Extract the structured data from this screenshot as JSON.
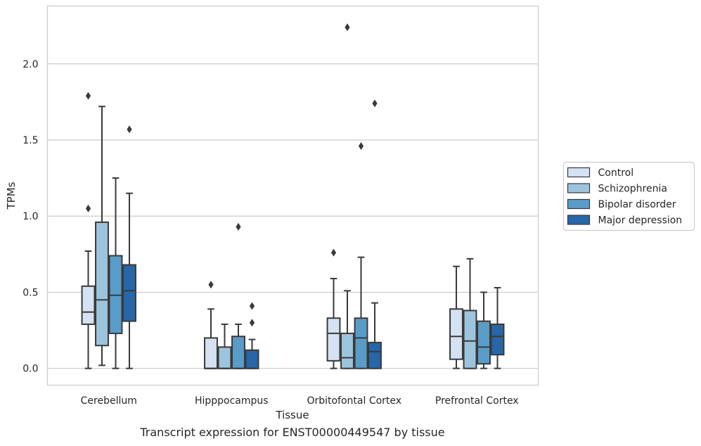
{
  "chart_data": {
    "type": "boxplot",
    "title": "",
    "xlabel": "Tissue",
    "ylabel": "TPMs",
    "caption": "Transcript expression for ENST00000449547 by tissue",
    "categories": [
      "Cerebellum",
      "Hipppocampus",
      "Orbitofontal Cortex",
      "Prefrontal Cortex"
    ],
    "ylim": [
      -0.11,
      2.38
    ],
    "yticks": [
      0.0,
      0.5,
      1.0,
      1.5,
      2.0
    ],
    "ytick_labels": [
      "0.0",
      "0.5",
      "1.0",
      "1.5",
      "2.0"
    ],
    "grid": "horizontal",
    "legend_position": "right",
    "series": [
      {
        "name": "Control",
        "color": "#d4e2f2",
        "boxes": [
          {
            "whislo": 0.0,
            "q1": 0.29,
            "med": 0.37,
            "q3": 0.54,
            "whishi": 0.77,
            "fliers": [
              1.05,
              1.79
            ]
          },
          {
            "whislo": 0.0,
            "q1": 0.0,
            "med": 0.0,
            "q3": 0.2,
            "whishi": 0.39,
            "fliers": [
              0.55
            ]
          },
          {
            "whislo": 0.0,
            "q1": 0.05,
            "med": 0.23,
            "q3": 0.33,
            "whishi": 0.59,
            "fliers": [
              0.76
            ]
          },
          {
            "whislo": 0.0,
            "q1": 0.06,
            "med": 0.21,
            "q3": 0.39,
            "whishi": 0.67,
            "fliers": []
          }
        ]
      },
      {
        "name": "Schizophrenia",
        "color": "#9dc4dd",
        "boxes": [
          {
            "whislo": 0.02,
            "q1": 0.15,
            "med": 0.45,
            "q3": 0.96,
            "whishi": 1.72,
            "fliers": []
          },
          {
            "whislo": 0.0,
            "q1": 0.0,
            "med": 0.0,
            "q3": 0.14,
            "whishi": 0.29,
            "fliers": []
          },
          {
            "whislo": 0.0,
            "q1": 0.0,
            "med": 0.07,
            "q3": 0.23,
            "whishi": 0.51,
            "fliers": [
              2.24
            ]
          },
          {
            "whislo": 0.0,
            "q1": 0.0,
            "med": 0.18,
            "q3": 0.38,
            "whishi": 0.72,
            "fliers": []
          }
        ]
      },
      {
        "name": "Bipolar disorder",
        "color": "#5a9cc8",
        "boxes": [
          {
            "whislo": 0.0,
            "q1": 0.23,
            "med": 0.48,
            "q3": 0.74,
            "whishi": 1.25,
            "fliers": []
          },
          {
            "whislo": 0.0,
            "q1": 0.0,
            "med": 0.0,
            "q3": 0.21,
            "whishi": 0.29,
            "fliers": [
              0.93
            ]
          },
          {
            "whislo": 0.0,
            "q1": 0.0,
            "med": 0.2,
            "q3": 0.33,
            "whishi": 0.73,
            "fliers": [
              1.46
            ]
          },
          {
            "whislo": 0.0,
            "q1": 0.03,
            "med": 0.14,
            "q3": 0.31,
            "whishi": 0.5,
            "fliers": []
          }
        ]
      },
      {
        "name": "Major depression",
        "color": "#2766a8",
        "boxes": [
          {
            "whislo": 0.0,
            "q1": 0.31,
            "med": 0.51,
            "q3": 0.68,
            "whishi": 1.15,
            "fliers": [
              1.57
            ]
          },
          {
            "whislo": 0.0,
            "q1": 0.0,
            "med": 0.0,
            "q3": 0.12,
            "whishi": 0.19,
            "fliers": [
              0.3,
              0.41
            ]
          },
          {
            "whislo": 0.0,
            "q1": 0.0,
            "med": 0.11,
            "q3": 0.17,
            "whishi": 0.43,
            "fliers": [
              1.74
            ]
          },
          {
            "whislo": 0.0,
            "q1": 0.09,
            "med": 0.21,
            "q3": 0.29,
            "whishi": 0.53,
            "fliers": []
          }
        ]
      }
    ]
  },
  "colors": {
    "box_edge": "#3a3a3a",
    "grid": "#cccccc",
    "axis_frame": "#cccccc",
    "text": "#262626"
  }
}
